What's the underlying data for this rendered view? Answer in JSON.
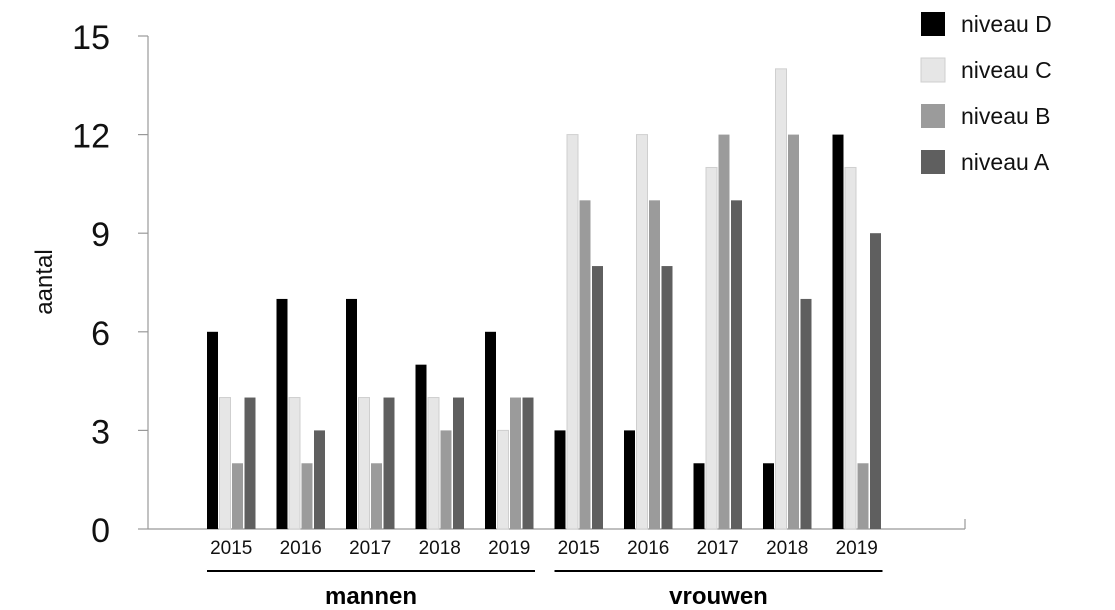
{
  "chart_data": {
    "type": "bar",
    "title": "",
    "xlabel": "",
    "ylabel": "aantal",
    "ylim": [
      0,
      15
    ],
    "yticks": [
      0,
      3,
      6,
      9,
      12,
      15
    ],
    "grid": false,
    "legend_position": "top-right",
    "groups": [
      {
        "label": "mannen",
        "categories": [
          "2015",
          "2016",
          "2017",
          "2018",
          "2019"
        ]
      },
      {
        "label": "vrouwen",
        "categories": [
          "2015",
          "2016",
          "2017",
          "2018",
          "2019"
        ]
      }
    ],
    "categories": [
      "2015",
      "2016",
      "2017",
      "2018",
      "2019",
      "2015",
      "2016",
      "2017",
      "2018",
      "2019"
    ],
    "series": [
      {
        "name": "niveau D",
        "color": "#000000",
        "values": [
          6,
          7,
          7,
          5,
          6,
          3,
          3,
          2,
          2,
          12
        ]
      },
      {
        "name": "niveau C",
        "color": "#e6e6e6",
        "values": [
          4,
          4,
          4,
          4,
          3,
          12,
          12,
          11,
          14,
          11
        ]
      },
      {
        "name": "niveau B",
        "color": "#9b9b9b",
        "values": [
          2,
          2,
          2,
          3,
          4,
          10,
          10,
          12,
          12,
          2
        ]
      },
      {
        "name": "niveau A",
        "color": "#5f5f5f",
        "values": [
          4,
          3,
          4,
          4,
          4,
          8,
          8,
          10,
          7,
          9
        ]
      }
    ],
    "legend_order": [
      "niveau D",
      "niveau C",
      "niveau B",
      "niveau A"
    ],
    "draw_order": [
      "niveau D",
      "niveau C",
      "niveau B",
      "niveau A"
    ]
  }
}
